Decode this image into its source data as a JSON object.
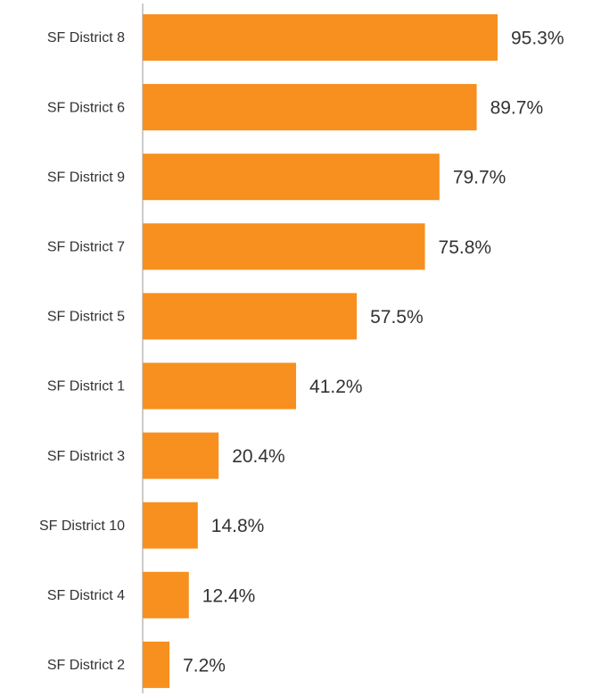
{
  "chart_data": {
    "type": "bar",
    "orientation": "horizontal",
    "categories": [
      "SF District 8",
      "SF District 6",
      "SF District 9",
      "SF District 7",
      "SF District 5",
      "SF District 1",
      "SF District 3",
      "SF District 10",
      "SF District 4",
      "SF District 2"
    ],
    "values": [
      95.3,
      89.7,
      79.7,
      75.8,
      57.5,
      41.2,
      20.4,
      14.8,
      12.4,
      7.2
    ],
    "value_labels": [
      "95.3%",
      "89.7%",
      "79.7%",
      "75.8%",
      "57.5%",
      "41.2%",
      "20.4%",
      "14.8%",
      "12.4%",
      "7.2%"
    ],
    "color": "#f7901e"
  }
}
